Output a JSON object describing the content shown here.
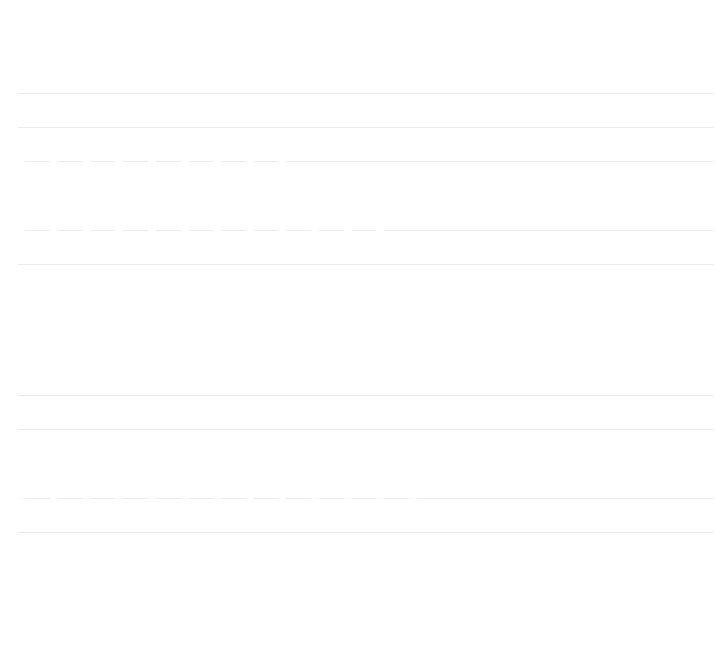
{
  "page": {
    "background_color": "#ffffff",
    "divider_color": "#ececec"
  },
  "top_list": {
    "rows": [
      "",
      "",
      "",
      "",
      ""
    ]
  },
  "bottom_list": {
    "rows": [
      "",
      "",
      "",
      ""
    ]
  }
}
